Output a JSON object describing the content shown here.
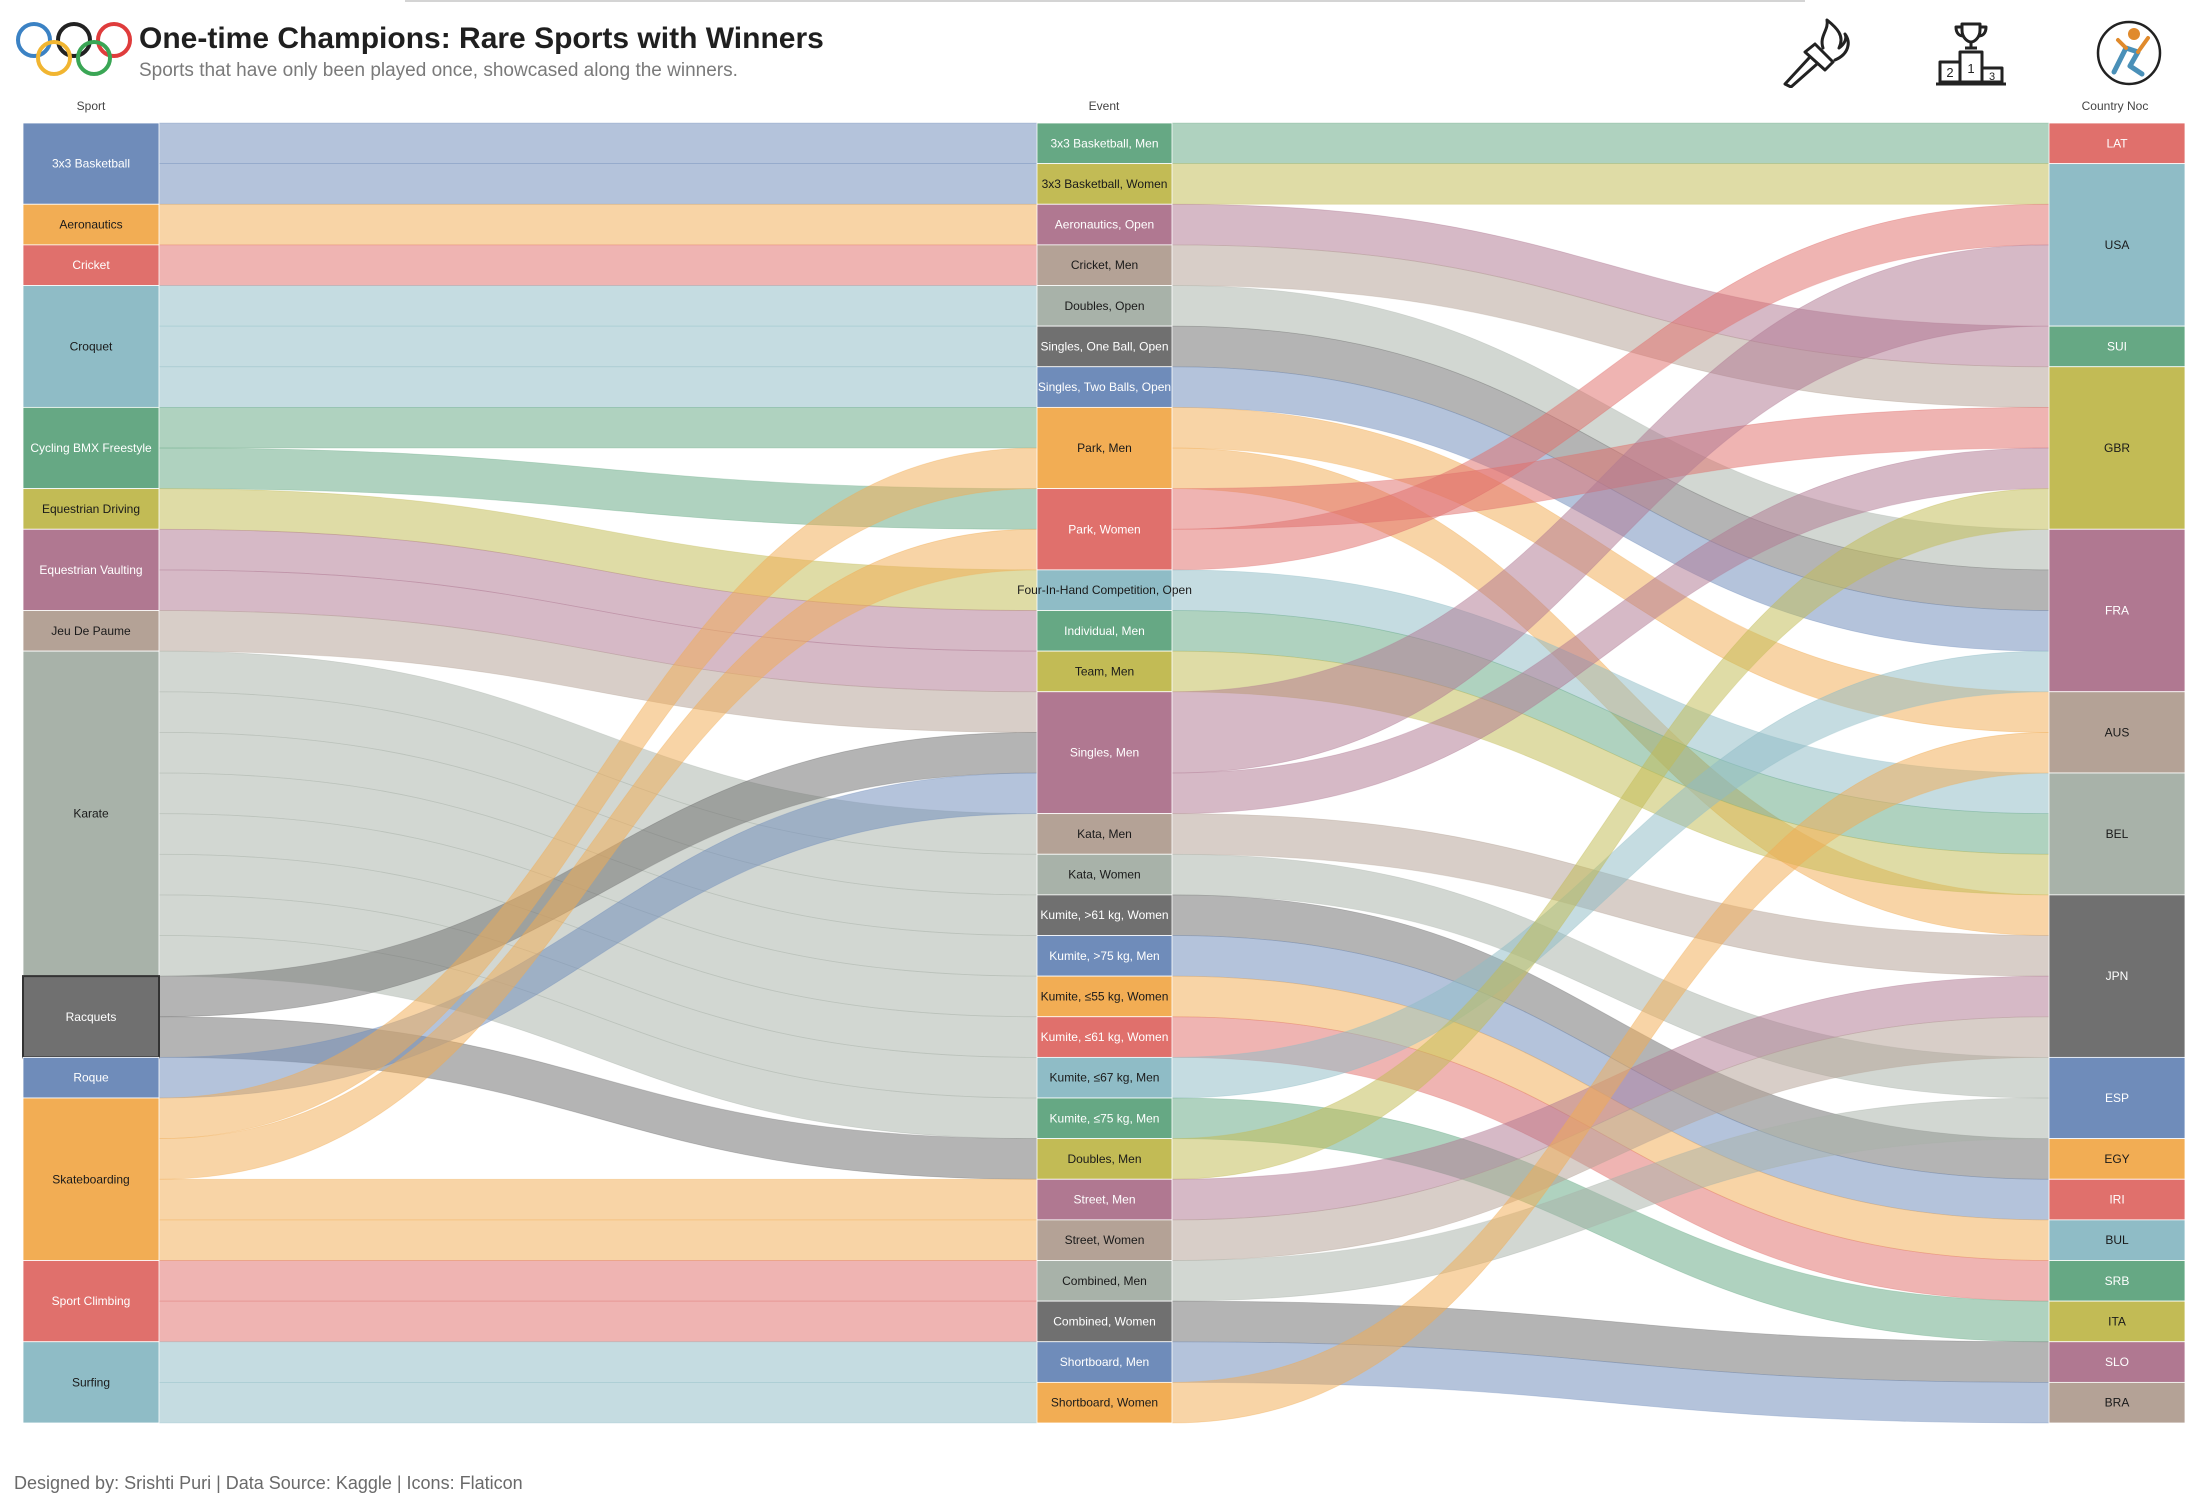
{
  "title": "One-time Champions: Rare Sports with Winners",
  "subtitle": "Sports that have only been played once, showcased along the winners.",
  "credits": "Designed by: Srishti Puri | Data Source: Kaggle | Icons: Flaticon",
  "header_icons": [
    "olympic-rings-icon",
    "torch-icon",
    "podium-icon",
    "athlete-icon"
  ],
  "palette": {
    "blue": "#6f8cba",
    "orange": "#f2ad54",
    "red": "#e0706c",
    "teal": "#8fbcc6",
    "green": "#66a884",
    "olive": "#c2bb55",
    "purple": "#b07891",
    "taupe": "#b4a296",
    "sage": "#a8b2a9",
    "gray": "#707070"
  },
  "chart_data": {
    "type": "sankey",
    "column_titles": {
      "sport": "Sport",
      "event": "Event",
      "country": "Country Noc"
    },
    "unit": "medals",
    "sports": [
      {
        "name": "3x3 Basketball",
        "color": "blue",
        "value": 2
      },
      {
        "name": "Aeronautics",
        "color": "orange",
        "value": 1
      },
      {
        "name": "Cricket",
        "color": "red",
        "value": 1
      },
      {
        "name": "Croquet",
        "color": "teal",
        "value": 3
      },
      {
        "name": "Cycling BMX Freestyle",
        "color": "green",
        "value": 2
      },
      {
        "name": "Equestrian Driving",
        "color": "olive",
        "value": 1
      },
      {
        "name": "Equestrian Vaulting",
        "color": "purple",
        "value": 2
      },
      {
        "name": "Jeu De Paume",
        "color": "taupe",
        "value": 1
      },
      {
        "name": "Karate",
        "color": "sage",
        "value": 8
      },
      {
        "name": "Racquets",
        "color": "gray",
        "value": 2
      },
      {
        "name": "Roque",
        "color": "blue",
        "value": 1
      },
      {
        "name": "Skateboarding",
        "color": "orange",
        "value": 4
      },
      {
        "name": "Sport Climbing",
        "color": "red",
        "value": 2
      },
      {
        "name": "Surfing",
        "color": "teal",
        "value": 2
      }
    ],
    "events": [
      {
        "name": "3x3 Basketball, Men",
        "color": "green",
        "value": 1
      },
      {
        "name": "3x3 Basketball, Women",
        "color": "olive",
        "value": 1
      },
      {
        "name": "Aeronautics, Open",
        "color": "purple",
        "value": 1
      },
      {
        "name": "Cricket, Men",
        "color": "taupe",
        "value": 1
      },
      {
        "name": "Doubles, Open",
        "color": "sage",
        "value": 1
      },
      {
        "name": "Singles, One Ball, Open",
        "color": "gray",
        "value": 1
      },
      {
        "name": "Singles, Two Balls, Open",
        "color": "blue",
        "value": 1
      },
      {
        "name": "Park, Men",
        "color": "orange",
        "value": 2
      },
      {
        "name": "Park, Women",
        "color": "red",
        "value": 2
      },
      {
        "name": "Four-In-Hand Competition, Open",
        "color": "teal",
        "value": 1
      },
      {
        "name": "Individual, Men",
        "color": "green",
        "value": 1
      },
      {
        "name": "Team, Men",
        "color": "olive",
        "value": 1
      },
      {
        "name": "Singles, Men",
        "color": "purple",
        "value": 3
      },
      {
        "name": "Kata, Men",
        "color": "taupe",
        "value": 1
      },
      {
        "name": "Kata, Women",
        "color": "sage",
        "value": 1
      },
      {
        "name": "Kumite, >61 kg, Women",
        "color": "gray",
        "value": 1
      },
      {
        "name": "Kumite, >75 kg, Men",
        "color": "blue",
        "value": 1
      },
      {
        "name": "Kumite, ≤55 kg, Women",
        "color": "orange",
        "value": 1
      },
      {
        "name": "Kumite, ≤61 kg, Women",
        "color": "red",
        "value": 1
      },
      {
        "name": "Kumite, ≤67 kg, Men",
        "color": "teal",
        "value": 1
      },
      {
        "name": "Kumite, ≤75 kg, Men",
        "color": "green",
        "value": 1
      },
      {
        "name": "Doubles, Men",
        "color": "olive",
        "value": 1
      },
      {
        "name": "Street, Men",
        "color": "purple",
        "value": 1
      },
      {
        "name": "Street, Women",
        "color": "taupe",
        "value": 1
      },
      {
        "name": "Combined, Men",
        "color": "sage",
        "value": 1
      },
      {
        "name": "Combined, Women",
        "color": "gray",
        "value": 1
      },
      {
        "name": "Shortboard, Men",
        "color": "blue",
        "value": 1
      },
      {
        "name": "Shortboard, Women",
        "color": "orange",
        "value": 1
      }
    ],
    "countries": [
      {
        "name": "LAT",
        "color": "red",
        "value": 1
      },
      {
        "name": "USA",
        "color": "teal",
        "value": 4
      },
      {
        "name": "SUI",
        "color": "green",
        "value": 1
      },
      {
        "name": "GBR",
        "color": "olive",
        "value": 4
      },
      {
        "name": "FRA",
        "color": "purple",
        "value": 4
      },
      {
        "name": "AUS",
        "color": "taupe",
        "value": 2
      },
      {
        "name": "BEL",
        "color": "sage",
        "value": 3
      },
      {
        "name": "JPN",
        "color": "gray",
        "value": 4
      },
      {
        "name": "ESP",
        "color": "blue",
        "value": 2
      },
      {
        "name": "EGY",
        "color": "orange",
        "value": 1
      },
      {
        "name": "IRI",
        "color": "red",
        "value": 1
      },
      {
        "name": "BUL",
        "color": "teal",
        "value": 1
      },
      {
        "name": "SRB",
        "color": "green",
        "value": 1
      },
      {
        "name": "ITA",
        "color": "olive",
        "value": 1
      },
      {
        "name": "SLO",
        "color": "purple",
        "value": 1
      },
      {
        "name": "BRA",
        "color": "taupe",
        "value": 1
      }
    ],
    "sport_event_links": [
      [
        "3x3 Basketball",
        "3x3 Basketball, Men",
        1
      ],
      [
        "3x3 Basketball",
        "3x3 Basketball, Women",
        1
      ],
      [
        "Aeronautics",
        "Aeronautics, Open",
        1
      ],
      [
        "Cricket",
        "Cricket, Men",
        1
      ],
      [
        "Croquet",
        "Doubles, Open",
        1
      ],
      [
        "Croquet",
        "Singles, One Ball, Open",
        1
      ],
      [
        "Croquet",
        "Singles, Two Balls, Open",
        1
      ],
      [
        "Cycling BMX Freestyle",
        "Park, Men",
        1
      ],
      [
        "Cycling BMX Freestyle",
        "Park, Women",
        1
      ],
      [
        "Equestrian Driving",
        "Four-In-Hand Competition, Open",
        1
      ],
      [
        "Equestrian Vaulting",
        "Individual, Men",
        1
      ],
      [
        "Equestrian Vaulting",
        "Team, Men",
        1
      ],
      [
        "Jeu De Paume",
        "Singles, Men",
        1
      ],
      [
        "Karate",
        "Kata, Men",
        1
      ],
      [
        "Karate",
        "Kata, Women",
        1
      ],
      [
        "Karate",
        "Kumite, >61 kg, Women",
        1
      ],
      [
        "Karate",
        "Kumite, >75 kg, Men",
        1
      ],
      [
        "Karate",
        "Kumite, ≤55 kg, Women",
        1
      ],
      [
        "Karate",
        "Kumite, ≤61 kg, Women",
        1
      ],
      [
        "Karate",
        "Kumite, ≤67 kg, Men",
        1
      ],
      [
        "Karate",
        "Kumite, ≤75 kg, Men",
        1
      ],
      [
        "Racquets",
        "Singles, Men",
        1
      ],
      [
        "Racquets",
        "Doubles, Men",
        1
      ],
      [
        "Roque",
        "Singles, Men",
        1
      ],
      [
        "Skateboarding",
        "Park, Men",
        1
      ],
      [
        "Skateboarding",
        "Park, Women",
        1
      ],
      [
        "Skateboarding",
        "Street, Men",
        1
      ],
      [
        "Skateboarding",
        "Street, Women",
        1
      ],
      [
        "Sport Climbing",
        "Combined, Men",
        1
      ],
      [
        "Sport Climbing",
        "Combined, Women",
        1
      ],
      [
        "Surfing",
        "Shortboard, Men",
        1
      ],
      [
        "Surfing",
        "Shortboard, Women",
        1
      ]
    ],
    "event_country_links": [
      [
        "3x3 Basketball, Men",
        "LAT",
        1
      ],
      [
        "3x3 Basketball, Women",
        "USA",
        1
      ],
      [
        "Aeronautics, Open",
        "SUI",
        1
      ],
      [
        "Cricket, Men",
        "GBR",
        1
      ],
      [
        "Doubles, Open",
        "FRA",
        1
      ],
      [
        "Singles, One Ball, Open",
        "FRA",
        1
      ],
      [
        "Singles, Two Balls, Open",
        "FRA",
        1
      ],
      [
        "Park, Men",
        "AUS",
        1
      ],
      [
        "Park, Men",
        "JPN",
        1
      ],
      [
        "Park, Women",
        "GBR",
        1
      ],
      [
        "Park, Women",
        "USA",
        1
      ],
      [
        "Four-In-Hand Competition, Open",
        "BEL",
        1
      ],
      [
        "Individual, Men",
        "BEL",
        1
      ],
      [
        "Team, Men",
        "BEL",
        1
      ],
      [
        "Singles, Men",
        "USA",
        2
      ],
      [
        "Singles, Men",
        "GBR",
        1
      ],
      [
        "Kata, Men",
        "JPN",
        1
      ],
      [
        "Kata, Women",
        "ESP",
        1
      ],
      [
        "Kumite, >61 kg, Women",
        "EGY",
        1
      ],
      [
        "Kumite, >75 kg, Men",
        "IRI",
        1
      ],
      [
        "Kumite, ≤55 kg, Women",
        "BUL",
        1
      ],
      [
        "Kumite, ≤61 kg, Women",
        "SRB",
        1
      ],
      [
        "Kumite, ≤67 kg, Men",
        "FRA",
        1
      ],
      [
        "Kumite, ≤75 kg, Men",
        "ITA",
        1
      ],
      [
        "Doubles, Men",
        "GBR",
        1
      ],
      [
        "Street, Men",
        "JPN",
        1
      ],
      [
        "Street, Women",
        "JPN",
        1
      ],
      [
        "Combined, Men",
        "ESP",
        1
      ],
      [
        "Combined, Women",
        "SLO",
        1
      ],
      [
        "Shortboard, Men",
        "BRA",
        1
      ],
      [
        "Shortboard, Women",
        "AUS",
        1
      ]
    ]
  }
}
